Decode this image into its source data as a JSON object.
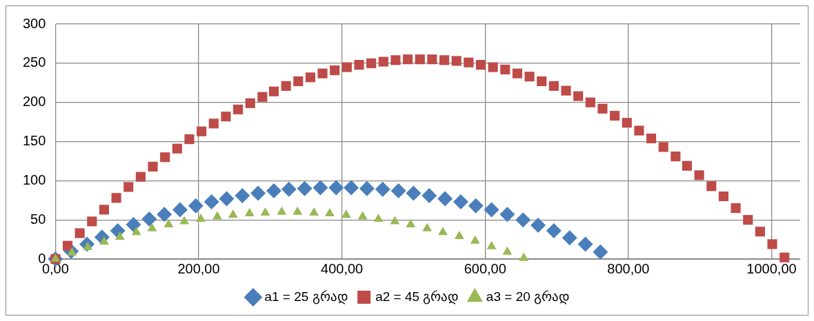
{
  "chart_data": {
    "type": "scatter",
    "xlim": [
      0,
      1040
    ],
    "xticks": [
      {
        "value": 0,
        "label": "0,00"
      },
      {
        "value": 200,
        "label": "200,00"
      },
      {
        "value": 400,
        "label": "400,00"
      },
      {
        "value": 600,
        "label": "600,00"
      },
      {
        "value": 800,
        "label": "800,00"
      },
      {
        "value": 1000,
        "label": "1000,00"
      }
    ],
    "ylim": [
      0,
      300
    ],
    "yticks": [
      0,
      50,
      100,
      150,
      200,
      250,
      300
    ],
    "grid": true,
    "legend": "bottom",
    "series": [
      {
        "name": "a1 = 25 გრად",
        "color": "#4a7ebb",
        "marker": "diamond",
        "x": [
          0,
          22,
          44,
          65,
          87,
          109,
          131,
          152,
          174,
          196,
          218,
          239,
          261,
          283,
          305,
          326,
          348,
          370,
          392,
          413,
          435,
          457,
          479,
          500,
          522,
          544,
          566,
          587,
          609,
          631,
          653,
          674,
          696,
          718,
          740,
          761
        ],
        "values": [
          0,
          10,
          19,
          28,
          36,
          44,
          51,
          57,
          63,
          68,
          73,
          77,
          81,
          84,
          87,
          89,
          90,
          91,
          91,
          91,
          90,
          89,
          87,
          84,
          81,
          77,
          73,
          68,
          63,
          57,
          50,
          43,
          36,
          27,
          19,
          9
        ]
      },
      {
        "name": "a2 = 45 გრად",
        "color": "#be4b48",
        "marker": "square",
        "x": [
          0,
          17,
          34,
          51,
          68,
          85,
          102,
          119,
          136,
          153,
          170,
          187,
          204,
          221,
          238,
          255,
          272,
          289,
          305,
          322,
          339,
          356,
          373,
          390,
          407,
          424,
          441,
          458,
          475,
          492,
          509,
          526,
          543,
          560,
          577,
          594,
          611,
          628,
          645,
          662,
          679,
          696,
          713,
          730,
          747,
          764,
          781,
          798,
          815,
          832,
          849,
          866,
          882,
          899,
          916,
          933,
          950,
          967,
          984,
          1001,
          1018
        ],
        "values": [
          0,
          17,
          33,
          48,
          63,
          78,
          92,
          105,
          118,
          130,
          141,
          153,
          163,
          173,
          182,
          191,
          199,
          207,
          214,
          221,
          227,
          232,
          237,
          241,
          245,
          248,
          250,
          252,
          254,
          255,
          255,
          255,
          254,
          253,
          251,
          248,
          245,
          242,
          237,
          233,
          227,
          221,
          215,
          208,
          200,
          192,
          183,
          174,
          164,
          154,
          143,
          131,
          119,
          107,
          93,
          80,
          65,
          50,
          35,
          19,
          2
        ]
      },
      {
        "name": "a3 = 20 გრად",
        "color": "#98b954",
        "marker": "triangle",
        "x": [
          0,
          23,
          45,
          68,
          90,
          113,
          135,
          158,
          180,
          203,
          226,
          248,
          271,
          293,
          316,
          338,
          361,
          383,
          406,
          429,
          451,
          474,
          496,
          519,
          541,
          564,
          586,
          609,
          631,
          654
        ],
        "values": [
          0,
          8,
          15,
          22,
          28,
          34,
          39,
          44,
          48,
          51,
          54,
          56,
          58,
          59,
          60,
          60,
          59,
          58,
          56,
          54,
          51,
          48,
          44,
          39,
          34,
          29,
          23,
          16,
          9,
          1
        ]
      }
    ]
  }
}
